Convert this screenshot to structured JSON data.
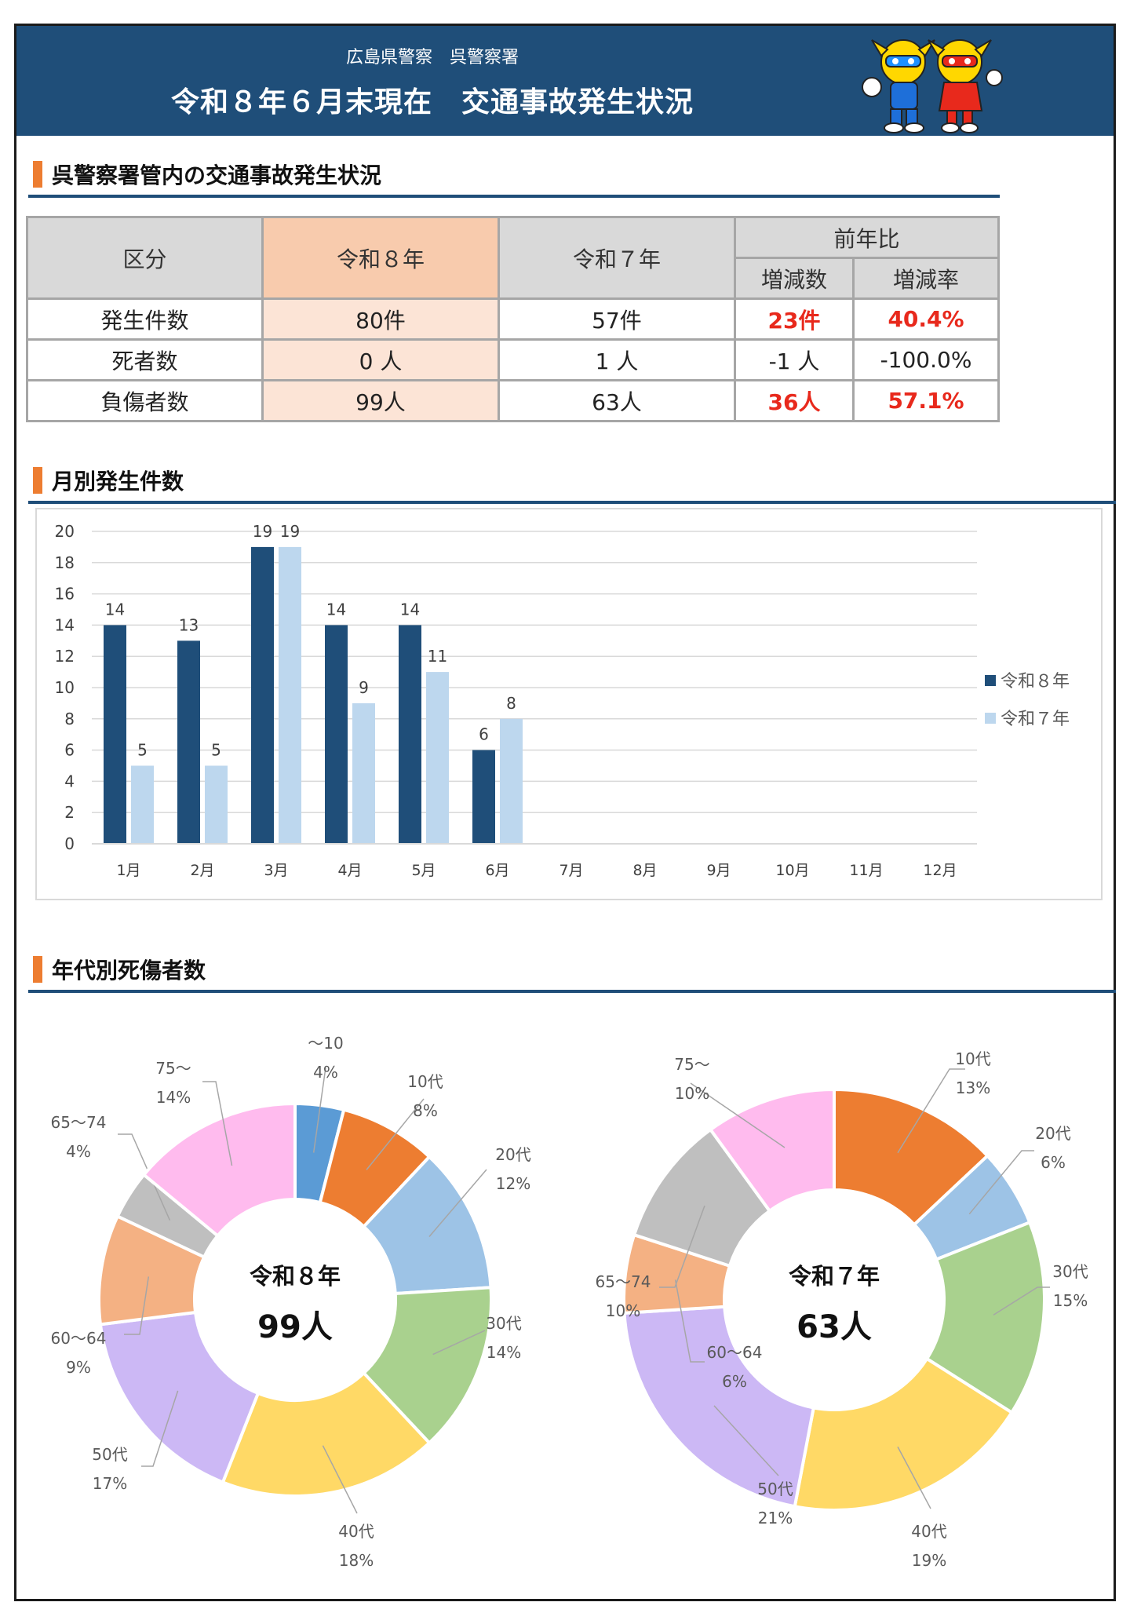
{
  "header": {
    "subtitle": "広島県警察　呉警察署",
    "title": "令和８年６月末現在　交通事故発生状況"
  },
  "sections": {
    "summary": "呉警察署管内の交通事故発生状況",
    "monthly": "月別発生件数",
    "age": "年代別死傷者数"
  },
  "summary_table": {
    "headers": {
      "category": "区分",
      "current": "令和８年",
      "previous": "令和７年",
      "comparison": "前年比",
      "change_count": "増減数",
      "change_rate": "増減率"
    },
    "rows": [
      {
        "label": "発生件数",
        "current": "80件",
        "previous": "57件",
        "change": "23件",
        "rate": "40.4%",
        "highlight": true
      },
      {
        "label": "死者数",
        "current": "0 人",
        "previous": "1 人",
        "change": "-1 人",
        "rate": "-100.0%",
        "highlight": false
      },
      {
        "label": "負傷者数",
        "current": "99人",
        "previous": "63人",
        "change": "36人",
        "rate": "57.1%",
        "highlight": true
      }
    ]
  },
  "chart_data": [
    {
      "type": "bar",
      "categories": [
        "1月",
        "2月",
        "3月",
        "4月",
        "5月",
        "6月",
        "7月",
        "8月",
        "9月",
        "10月",
        "11月",
        "12月"
      ],
      "series": [
        {
          "name": "令和８年",
          "color": "#1f4e79",
          "values": [
            14,
            13,
            19,
            14,
            14,
            6,
            null,
            null,
            null,
            null,
            null,
            null
          ]
        },
        {
          "name": "令和７年",
          "color": "#bdd7ee",
          "values": [
            5,
            5,
            19,
            9,
            11,
            8,
            null,
            null,
            null,
            null,
            null,
            null
          ]
        }
      ],
      "yticks": [
        0,
        2,
        4,
        6,
        8,
        10,
        12,
        14,
        16,
        18,
        20
      ],
      "ylim": [
        0,
        20
      ],
      "grid": true,
      "legend": "right"
    },
    {
      "type": "pie",
      "center_title": "令和８年",
      "center_value": "99人",
      "slices": [
        {
          "label": "～10",
          "percent": "4%",
          "value": 4,
          "color": "#5b9bd5"
        },
        {
          "label": "10代",
          "percent": "8%",
          "value": 8,
          "color": "#ed7d31"
        },
        {
          "label": "20代",
          "percent": "12%",
          "value": 12,
          "color": "#9dc3e6"
        },
        {
          "label": "30代",
          "percent": "14%",
          "value": 14,
          "color": "#a9d18e"
        },
        {
          "label": "40代",
          "percent": "18%",
          "value": 18,
          "color": "#ffd966"
        },
        {
          "label": "50代",
          "percent": "17%",
          "value": 17,
          "color": "#ccb8f5"
        },
        {
          "label": "60～64",
          "percent": "9%",
          "value": 9,
          "color": "#f4b183"
        },
        {
          "label": "65～74",
          "percent": "4%",
          "value": 4,
          "color": "#bfbfbf"
        },
        {
          "label": "75～",
          "percent": "14%",
          "value": 14,
          "color": "#ffbbee"
        }
      ]
    },
    {
      "type": "pie",
      "center_title": "令和７年",
      "center_value": "63人",
      "slices": [
        {
          "label": "10代",
          "percent": "13%",
          "value": 13,
          "color": "#ed7d31"
        },
        {
          "label": "20代",
          "percent": "6%",
          "value": 6,
          "color": "#9dc3e6"
        },
        {
          "label": "30代",
          "percent": "15%",
          "value": 15,
          "color": "#a9d18e"
        },
        {
          "label": "40代",
          "percent": "19%",
          "value": 19,
          "color": "#ffd966"
        },
        {
          "label": "50代",
          "percent": "21%",
          "value": 21,
          "color": "#ccb8f5"
        },
        {
          "label": "60～64",
          "percent": "6%",
          "value": 6,
          "color": "#f4b183"
        },
        {
          "label": "65～74",
          "percent": "10%",
          "value": 10,
          "color": "#bfbfbf"
        },
        {
          "label": "75～",
          "percent": "10%",
          "value": 10,
          "color": "#ffbbee"
        }
      ]
    }
  ]
}
